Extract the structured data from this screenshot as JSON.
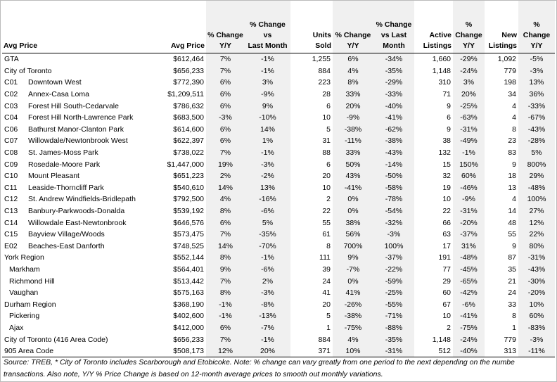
{
  "table": {
    "columns": [
      [
        "Avg Price"
      ],
      [
        "Avg Price"
      ],
      [
        "% Change",
        "Y/Y"
      ],
      [
        "% Change vs",
        "Last Month"
      ],
      [
        "Units",
        "Sold"
      ],
      [
        "% Change",
        "Y/Y"
      ],
      [
        "% Change",
        "vs Last",
        "Month"
      ],
      [
        "Active",
        "Listings"
      ],
      [
        "%",
        "Change",
        "Y/Y"
      ],
      [
        "New",
        "Listings"
      ],
      [
        "%",
        "Change",
        "Y/Y"
      ]
    ],
    "rows": [
      {
        "name": "GTA",
        "values": [
          "$612,464",
          "7%",
          "-1%",
          "1,255",
          "6%",
          "-34%",
          "1,660",
          "-29%",
          "1,092",
          "-5%"
        ]
      },
      {
        "name": "City of Toronto",
        "values": [
          "$656,233",
          "7%",
          "-1%",
          "884",
          "4%",
          "-35%",
          "1,148",
          "-24%",
          "779",
          "-3%"
        ]
      },
      {
        "code": "C01",
        "name": "Downtown West",
        "values": [
          "$772,390",
          "6%",
          "3%",
          "223",
          "8%",
          "-29%",
          "310",
          "3%",
          "198",
          "13%"
        ]
      },
      {
        "code": "C02",
        "name": "Annex-Casa Loma",
        "values": [
          "$1,209,511",
          "6%",
          "-9%",
          "28",
          "33%",
          "-33%",
          "71",
          "20%",
          "34",
          "36%"
        ]
      },
      {
        "code": "C03",
        "name": "Forest Hill South-Cedarvale",
        "values": [
          "$786,632",
          "6%",
          "9%",
          "6",
          "20%",
          "-40%",
          "9",
          "-25%",
          "4",
          "-33%"
        ]
      },
      {
        "code": "C04",
        "name": "Forest Hill North-Lawrence Park",
        "values": [
          "$683,500",
          "-3%",
          "-10%",
          "10",
          "-9%",
          "-41%",
          "6",
          "-63%",
          "4",
          "-67%"
        ]
      },
      {
        "code": "C06",
        "name": "Bathurst Manor-Clanton Park",
        "values": [
          "$614,600",
          "6%",
          "14%",
          "5",
          "-38%",
          "-62%",
          "9",
          "-31%",
          "8",
          "-43%"
        ]
      },
      {
        "code": "C07",
        "name": "Willowdale/Newtonbrook West",
        "values": [
          "$622,397",
          "6%",
          "1%",
          "31",
          "-11%",
          "-38%",
          "38",
          "-49%",
          "23",
          "-28%"
        ]
      },
      {
        "code": "C08",
        "name": "St. James-Moss Park",
        "values": [
          "$738,022",
          "7%",
          "-1%",
          "88",
          "33%",
          "-43%",
          "132",
          "-1%",
          "83",
          "5%"
        ]
      },
      {
        "code": "C09",
        "name": "Rosedale-Moore Park",
        "values": [
          "$1,447,000",
          "19%",
          "-3%",
          "6",
          "50%",
          "-14%",
          "15",
          "150%",
          "9",
          "800%"
        ]
      },
      {
        "code": "C10",
        "name": "Mount Pleasant",
        "values": [
          "$651,223",
          "2%",
          "-2%",
          "20",
          "43%",
          "-50%",
          "32",
          "60%",
          "18",
          "29%"
        ]
      },
      {
        "code": "C11",
        "name": "Leaside-Thorncliff Park",
        "values": [
          "$540,610",
          "14%",
          "13%",
          "10",
          "-41%",
          "-58%",
          "19",
          "-46%",
          "13",
          "-48%"
        ]
      },
      {
        "code": "C12",
        "name": "St. Andrew Windfields-Bridlepath",
        "values": [
          "$792,500",
          "4%",
          "-16%",
          "2",
          "0%",
          "-78%",
          "10",
          "-9%",
          "4",
          "100%"
        ]
      },
      {
        "code": "C13",
        "name": "Banbury-Parkwoods-Donalda",
        "values": [
          "$539,192",
          "8%",
          "-6%",
          "22",
          "0%",
          "-54%",
          "22",
          "-31%",
          "14",
          "27%"
        ]
      },
      {
        "code": "C14",
        "name": "Willowdale East-Newtonbrook",
        "values": [
          "$646,576",
          "6%",
          "5%",
          "55",
          "38%",
          "-32%",
          "66",
          "-20%",
          "48",
          "12%"
        ]
      },
      {
        "code": "C15",
        "name": "Bayview Village/Woods",
        "values": [
          "$573,475",
          "7%",
          "-35%",
          "61",
          "56%",
          "-3%",
          "63",
          "-37%",
          "55",
          "22%"
        ]
      },
      {
        "code": "E02",
        "name": "Beaches-East Danforth",
        "values": [
          "$748,525",
          "14%",
          "-70%",
          "8",
          "700%",
          "100%",
          "17",
          "31%",
          "9",
          "80%"
        ]
      },
      {
        "name": "York Region",
        "values": [
          "$552,144",
          "8%",
          "-1%",
          "111",
          "9%",
          "-37%",
          "191",
          "-48%",
          "87",
          "-31%"
        ],
        "children": [
          {
            "name": "Markham",
            "values": [
              "$564,401",
              "9%",
              "-6%",
              "39",
              "-7%",
              "-22%",
              "77",
              "-45%",
              "35",
              "-43%"
            ]
          },
          {
            "name": "Richmond Hill",
            "values": [
              "$513,442",
              "7%",
              "2%",
              "24",
              "0%",
              "-59%",
              "29",
              "-65%",
              "21",
              "-30%"
            ]
          },
          {
            "name": "Vaughan",
            "values": [
              "$575,163",
              "8%",
              "-3%",
              "41",
              "41%",
              "-25%",
              "60",
              "-42%",
              "24",
              "-20%"
            ]
          }
        ]
      },
      {
        "name": "Durham Region",
        "values": [
          "$368,190",
          "-1%",
          "-8%",
          "20",
          "-26%",
          "-55%",
          "67",
          "-6%",
          "33",
          "10%"
        ],
        "children": [
          {
            "name": "Pickering",
            "values": [
              "$402,600",
              "-1%",
              "-13%",
              "5",
              "-38%",
              "-71%",
              "10",
              "-41%",
              "8",
              "60%"
            ]
          },
          {
            "name": "Ajax",
            "values": [
              "$412,000",
              "6%",
              "-7%",
              "1",
              "-75%",
              "-88%",
              "2",
              "-75%",
              "1",
              "-83%"
            ]
          }
        ]
      },
      {
        "name": "City of Toronto (416 Area Code)",
        "values": [
          "$656,233",
          "7%",
          "-1%",
          "884",
          "4%",
          "-35%",
          "1,148",
          "-24%",
          "779",
          "-3%"
        ]
      },
      {
        "name": "905 Area Code",
        "values": [
          "$508,173",
          "12%",
          "20%",
          "371",
          "10%",
          "-31%",
          "512",
          "-40%",
          "313",
          "-11%"
        ]
      }
    ]
  },
  "footnote": [
    "Source: TREB, * City of Toronto includes Scarborough and Etobicoke. Note: % change can vary greatly from one period to the next depending on the numbe",
    "transactions. Also note, Y/Y % Price Change is based on 12-month average prices to smooth out monthly variations."
  ]
}
